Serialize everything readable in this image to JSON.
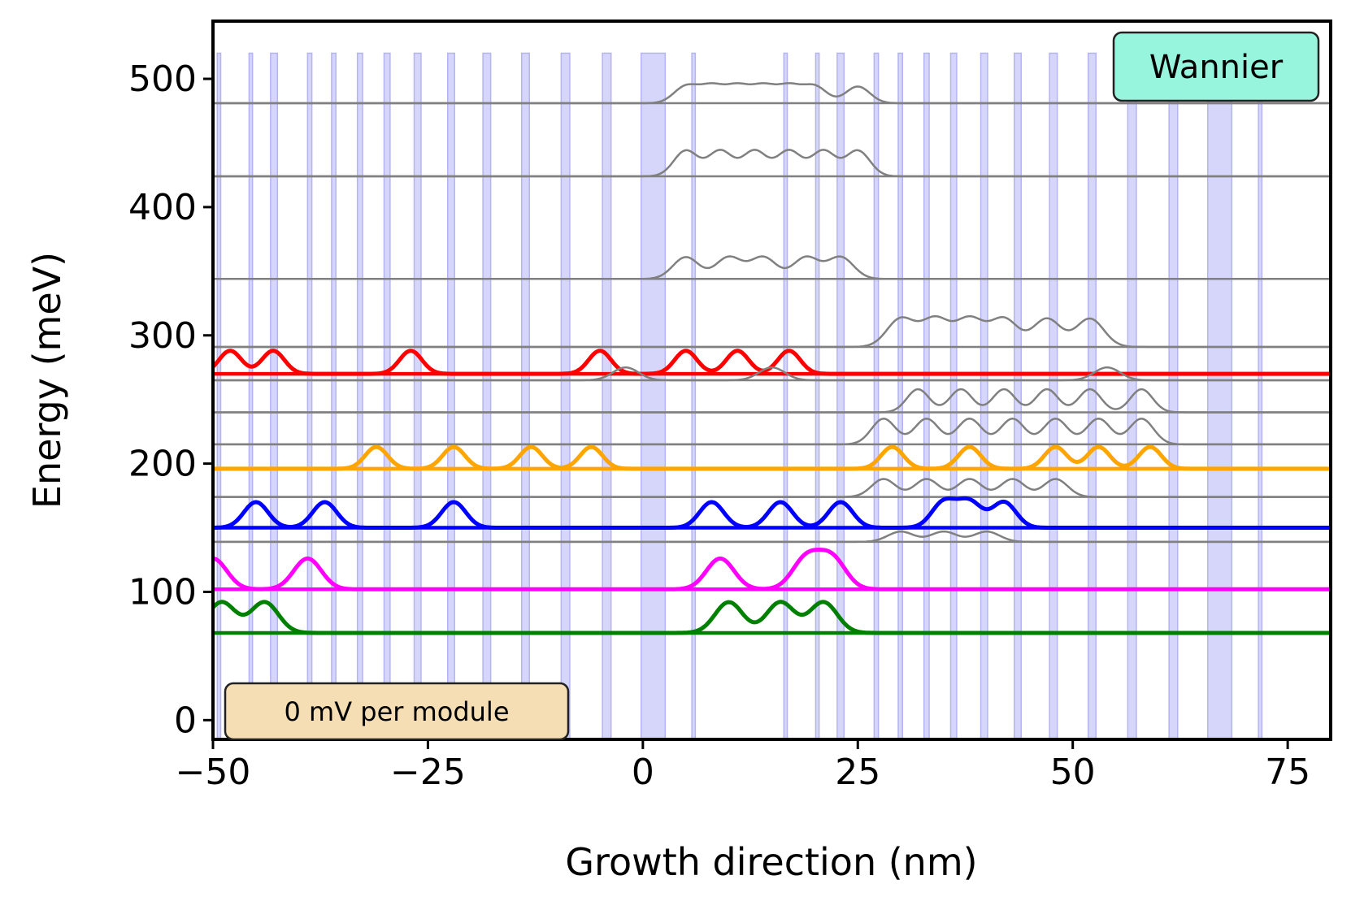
{
  "chart_data": {
    "type": "line",
    "title": "",
    "xlabel": "Growth direction (nm)",
    "ylabel": "Energy (meV)",
    "xlim": [
      -50,
      80
    ],
    "ylim": [
      -15,
      545
    ],
    "x_ticks": [
      -50,
      -25,
      0,
      25,
      50,
      75
    ],
    "x_tick_labels": [
      "−50",
      "−25",
      "0",
      "25",
      "50",
      "75"
    ],
    "y_ticks": [
      0,
      100,
      200,
      300,
      400,
      500
    ],
    "y_tick_labels": [
      "0",
      "100",
      "200",
      "300",
      "400",
      "500"
    ],
    "grid": false,
    "annotations": {
      "top_right": "Wannier",
      "bottom_left": "0 mV per module"
    },
    "colors": {
      "barrier_fill": "#d6d6fb",
      "barrier_edge": "#b4b4f2",
      "gray_state": "#808080",
      "wannier_box_bg": "#96f5dc",
      "bias_box_bg": "#f5deb3",
      "green": "#008000",
      "magenta": "#ff00ff",
      "blue": "#0000ff",
      "orange": "#ffa500",
      "red": "#ff0000"
    },
    "barriers": {
      "module_period_nm": 65.9,
      "first_module_start_nm": -49.5,
      "module_layers_nm": [
        [
          0,
          0.4
        ],
        [
          3.7,
          0.4
        ],
        [
          6.2,
          0.8
        ],
        [
          10.5,
          0.5
        ],
        [
          13.3,
          0.5
        ],
        [
          16.3,
          0.6
        ],
        [
          19.4,
          0.7
        ],
        [
          22.9,
          0.8
        ],
        [
          26.8,
          0.8
        ],
        [
          30.9,
          0.9
        ],
        [
          35.4,
          0.9
        ],
        [
          40.0,
          1.0
        ],
        [
          44.8,
          1.0
        ],
        [
          49.3,
          2.8
        ],
        [
          55.2,
          0.4
        ]
      ],
      "top_energy_meV": 520
    },
    "series": [
      {
        "name": "gray state 1",
        "color": "gray_state",
        "level": 481,
        "peaks": [
          5,
          8,
          11,
          14,
          17,
          20,
          25
        ],
        "amplitude": 13,
        "width": 1.4
      },
      {
        "name": "gray state 2",
        "color": "gray_state",
        "level": 424,
        "peaks": [
          5,
          9,
          13,
          17,
          21,
          25
        ],
        "amplitude": 20,
        "width": 1.4
      },
      {
        "name": "gray state 3",
        "color": "gray_state",
        "level": 344,
        "peaks": [
          5,
          10,
          14,
          19,
          23
        ],
        "amplitude": 17,
        "width": 1.5
      },
      {
        "name": "gray state 4",
        "color": "gray_state",
        "level": 291,
        "peaks": [
          30,
          34,
          38,
          42,
          47,
          52
        ],
        "amplitude": 22,
        "width": 1.6
      },
      {
        "name": "red state",
        "color": "red",
        "level": 270,
        "peaks": [
          -48,
          -43,
          -27,
          -5,
          5,
          11,
          17
        ],
        "amplitude": 18,
        "width": 1.3
      },
      {
        "name": "gray state 5",
        "color": "gray_state",
        "level": 265,
        "peaks": [
          -2,
          15,
          54
        ],
        "amplitude": 10,
        "width": 1.5
      },
      {
        "name": "gray state 6",
        "color": "gray_state",
        "level": 240,
        "peaks": [
          32,
          37,
          42,
          47,
          52,
          58
        ],
        "amplitude": 18,
        "width": 1.3
      },
      {
        "name": "gray state 7",
        "color": "gray_state",
        "level": 215,
        "peaks": [
          28,
          33,
          38,
          43,
          48,
          53,
          58
        ],
        "amplitude": 20,
        "width": 1.4
      },
      {
        "name": "orange state",
        "color": "orange",
        "level": 196,
        "peaks": [
          -31,
          -22,
          -13,
          -6,
          29,
          38,
          48,
          53,
          59
        ],
        "amplitude": 17,
        "width": 1.3
      },
      {
        "name": "gray state 8",
        "color": "gray_state",
        "level": 174,
        "peaks": [
          28,
          33,
          38,
          43,
          48
        ],
        "amplitude": 14,
        "width": 1.4
      },
      {
        "name": "blue state",
        "color": "blue",
        "level": 150,
        "peaks": [
          -45,
          -37,
          -22,
          8,
          16,
          23,
          35,
          38,
          42
        ],
        "amplitude": 20,
        "width": 1.4
      },
      {
        "name": "gray state 9",
        "color": "gray_state",
        "level": 139,
        "peaks": [
          30,
          35,
          40
        ],
        "amplitude": 8,
        "width": 1.5
      },
      {
        "name": "magenta state",
        "color": "magenta",
        "level": 102,
        "peaks": [
          -50,
          -39,
          9,
          19,
          22
        ],
        "amplitude": 24,
        "width": 1.6
      },
      {
        "name": "green state",
        "color": "green",
        "level": 68,
        "peaks": [
          -49,
          -44,
          10,
          16,
          21
        ],
        "amplitude": 24,
        "width": 1.6
      }
    ]
  }
}
